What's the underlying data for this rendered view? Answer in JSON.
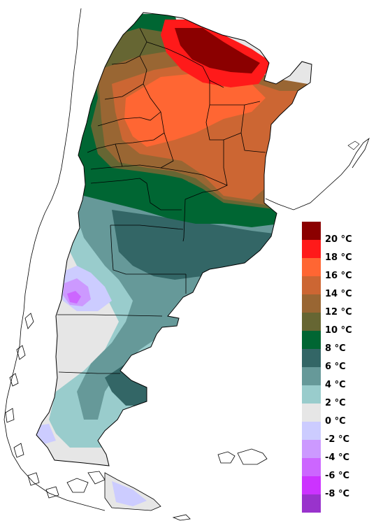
{
  "legend": {
    "items": [
      {
        "label": "20 °C",
        "color": "#8b0000"
      },
      {
        "label": "18 °C",
        "color": "#ff1a1a"
      },
      {
        "label": "16 °C",
        "color": "#ff6633"
      },
      {
        "label": "14 °C",
        "color": "#cc6633"
      },
      {
        "label": "12 °C",
        "color": "#996633"
      },
      {
        "label": "10 °C",
        "color": "#666633"
      },
      {
        "label": "8 °C",
        "color": "#006633"
      },
      {
        "label": "6 °C",
        "color": "#336666"
      },
      {
        "label": "4 °C",
        "color": "#669999"
      },
      {
        "label": "2 °C",
        "color": "#99cccc"
      },
      {
        "label": "0 °C",
        "color": "#e6e6e6"
      },
      {
        "label": "-2 °C",
        "color": "#ccccff"
      },
      {
        "label": "-4 °C",
        "color": "#cc99ff"
      },
      {
        "label": "-6 °C",
        "color": "#cc66ff"
      },
      {
        "label": "-8 °C",
        "color": "#cc33ff"
      },
      {
        "label": "",
        "color": "#9933cc"
      }
    ]
  }
}
